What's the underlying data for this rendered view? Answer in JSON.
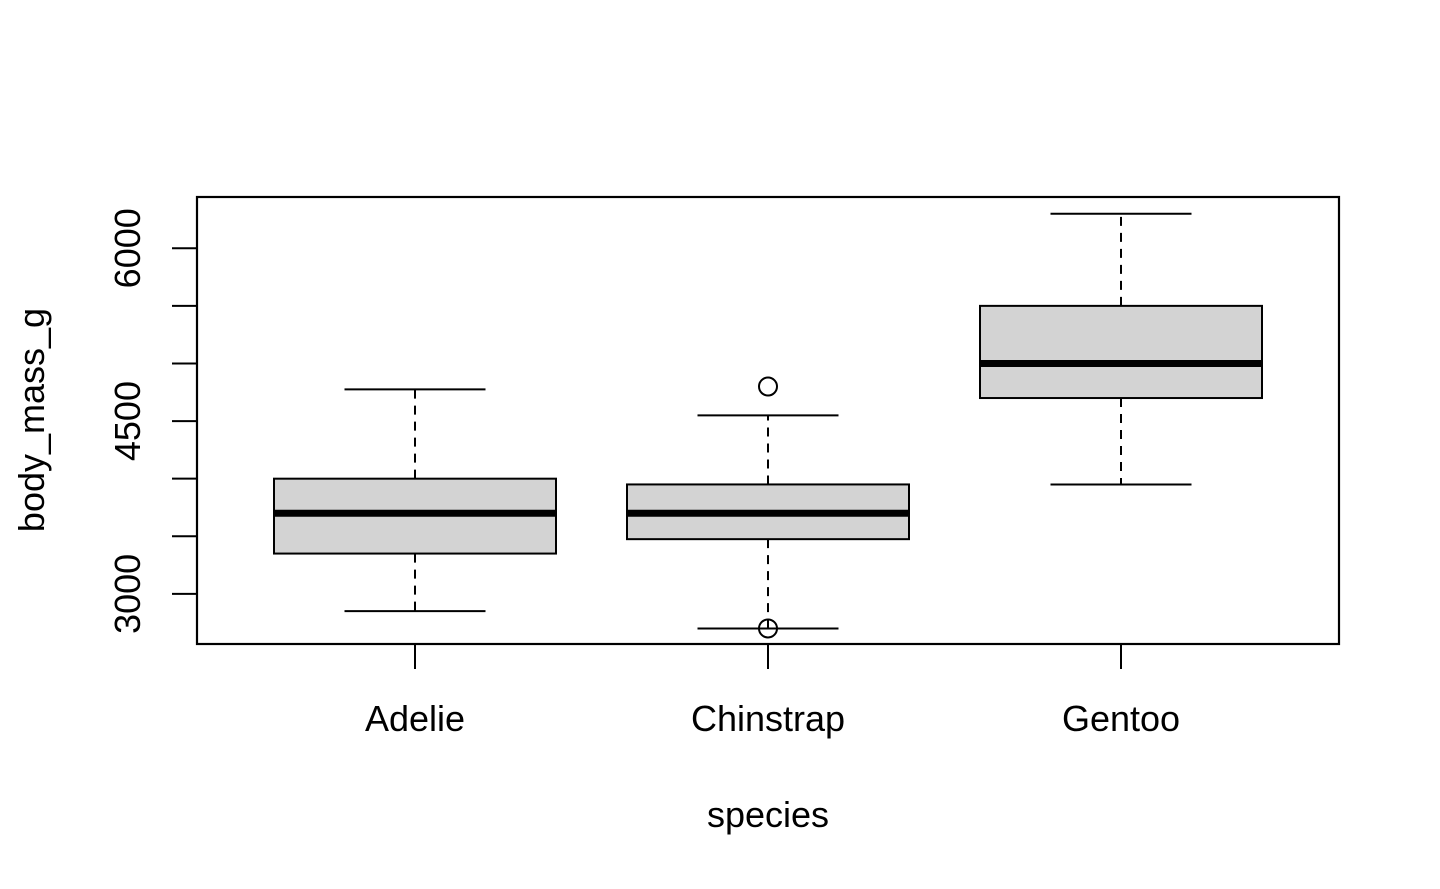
{
  "chart_data": {
    "type": "box",
    "xlabel": "species",
    "ylabel": "body_mass_g",
    "categories": [
      "Adelie",
      "Chinstrap",
      "Gentoo"
    ],
    "ylim": [
      2565,
      6445
    ],
    "yticks": [
      3000,
      3500,
      4000,
      4500,
      5000,
      5500,
      6000
    ],
    "ytick_labels": [
      "3000",
      "",
      "",
      "4500",
      "",
      "",
      "6000"
    ],
    "boxes": [
      {
        "category": "Adelie",
        "whisker_low": 2850,
        "q1": 3350,
        "median": 3700,
        "q3": 4000,
        "whisker_high": 4775,
        "outliers": []
      },
      {
        "category": "Chinstrap",
        "whisker_low": 2700,
        "q1": 3475,
        "median": 3700,
        "q3": 3950,
        "whisker_high": 4550,
        "outliers": [
          2700,
          4800
        ]
      },
      {
        "category": "Gentoo",
        "whisker_low": 3950,
        "q1": 4700,
        "median": 5000,
        "q3": 5500,
        "whisker_high": 6300,
        "outliers": []
      }
    ],
    "box_fill": "#d3d3d3",
    "line_color": "#000000",
    "grid": false,
    "legend": "none"
  }
}
